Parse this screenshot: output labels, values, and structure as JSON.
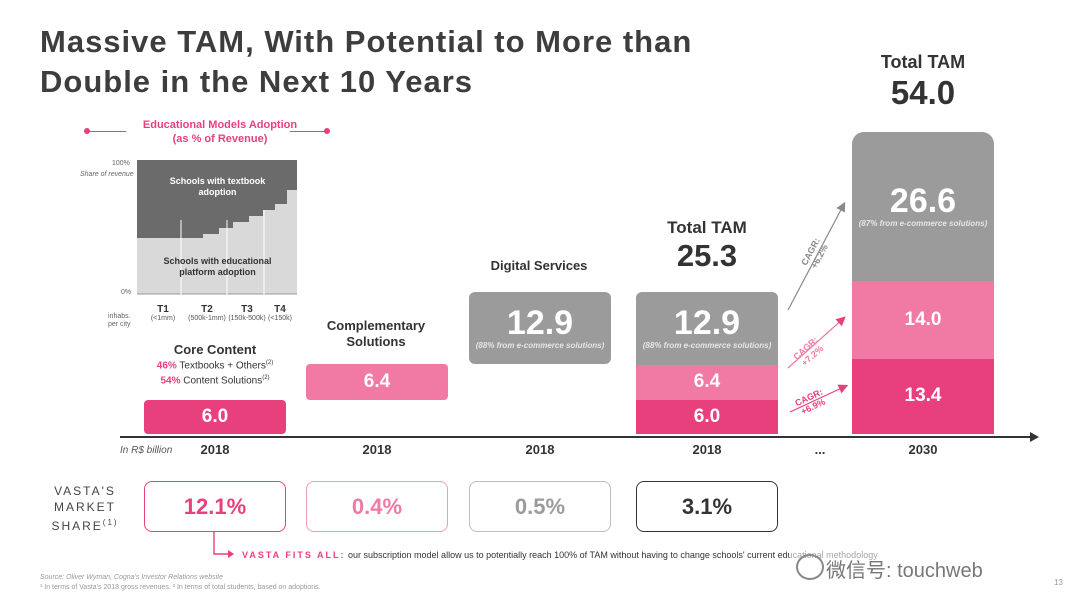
{
  "title_line1": "Massive TAM, With Potential to More than",
  "title_line2": "Double in the Next 10 Years",
  "adoption": {
    "title_line1": "Educational Models Adoption",
    "title_line2": "(as % of Revenue)",
    "y_top": "100%",
    "y_bottom": "0%",
    "y_label": "Share of revenue",
    "textbook_label": "Schools with textbook adoption",
    "platform_label": "Schools with educational platform adoption",
    "inhabs_label": "inhabs. per city",
    "tiers": [
      {
        "name": "T1",
        "sub": "(<1mm)"
      },
      {
        "name": "T2",
        "sub": "(500k-1mm)"
      },
      {
        "name": "T3",
        "sub": "(150k-500k)"
      },
      {
        "name": "T4",
        "sub": "(<150k)"
      }
    ]
  },
  "unit_label": "In R$ billion",
  "core": {
    "title": "Core Content",
    "line1_pct": "46%",
    "line1_text": "Textbooks + Others",
    "line1_sup": "(2)",
    "line2_pct": "54%",
    "line2_text": "Content Solutions",
    "line2_sup": "(2)"
  },
  "complementary": {
    "title_line1": "Complementary",
    "title_line2": "Solutions"
  },
  "digital": {
    "title": "Digital Services"
  },
  "total2018": {
    "label": "Total TAM",
    "value": "25.3"
  },
  "total2030": {
    "label": "Total TAM",
    "value": "54.0"
  },
  "ellipsis": "...",
  "note_ecom87": "(87% from e-commerce solutions)",
  "note_ecom88": "(88% from e-commerce solutions)",
  "cagr": [
    {
      "label": "CAGR:",
      "value": "+6.2%"
    },
    {
      "label": "CAGR:",
      "value": "+7.2%"
    },
    {
      "label": "CAGR:",
      "value": "+6.9%"
    }
  ],
  "market_share": {
    "label_line1": "VASTA'S",
    "label_line2": "MARKET",
    "label_line3": "SHARE",
    "label_sup": "(1)",
    "values": [
      "12.1%",
      "0.4%",
      "0.5%",
      "3.1%"
    ]
  },
  "fits": {
    "label": "VASTA FITS ALL:",
    "text": "our subscription model allow us to potentially reach 100% of TAM without having to change schools' current educational methodology"
  },
  "footnote1": "Source: Oliver Wyman, Cogna's Investor Relations website",
  "footnote2": "¹ In terms of Vasta's 2018 gross revenues. ² In terms of total students, based on adoptions.",
  "page_number": "13",
  "watermark": "微信号: touchweb",
  "colors": {
    "pink": "#e8407c",
    "lightpink": "#f39ab9",
    "gray": "#9a9a9a",
    "darkgray": "#6f6f6f"
  },
  "chart_data": {
    "type": "bar",
    "categories": [
      "Core Content 2018",
      "Complementary Solutions 2018",
      "Digital Services 2018",
      "Total 2018",
      "Total 2030"
    ],
    "x_labels": [
      "2018",
      "2018",
      "2018",
      "2018",
      "2030"
    ],
    "series": [
      {
        "name": "Core Content",
        "values": [
          6.0,
          null,
          null,
          6.0,
          13.4
        ]
      },
      {
        "name": "Complementary Solutions",
        "values": [
          null,
          6.4,
          null,
          6.4,
          14.0
        ]
      },
      {
        "name": "Digital Services",
        "values": [
          null,
          null,
          12.9,
          12.9,
          26.6
        ]
      }
    ],
    "segment_labels": [
      {
        "cat": 0,
        "text": "6.0"
      },
      {
        "cat": 1,
        "text": "6.4"
      },
      {
        "cat": 2,
        "text": "12.9"
      },
      {
        "cat": 3,
        "text": "6.0"
      },
      {
        "cat": 3,
        "text": "6.4"
      },
      {
        "cat": 3,
        "text": "12.9"
      },
      {
        "cat": 4,
        "text": "13.4"
      },
      {
        "cat": 4,
        "text": "14.0"
      },
      {
        "cat": 4,
        "text": "26.6"
      }
    ],
    "totals": {
      "2018": 25.3,
      "2030": 54.0
    },
    "ylabel": "In R$ billion"
  }
}
